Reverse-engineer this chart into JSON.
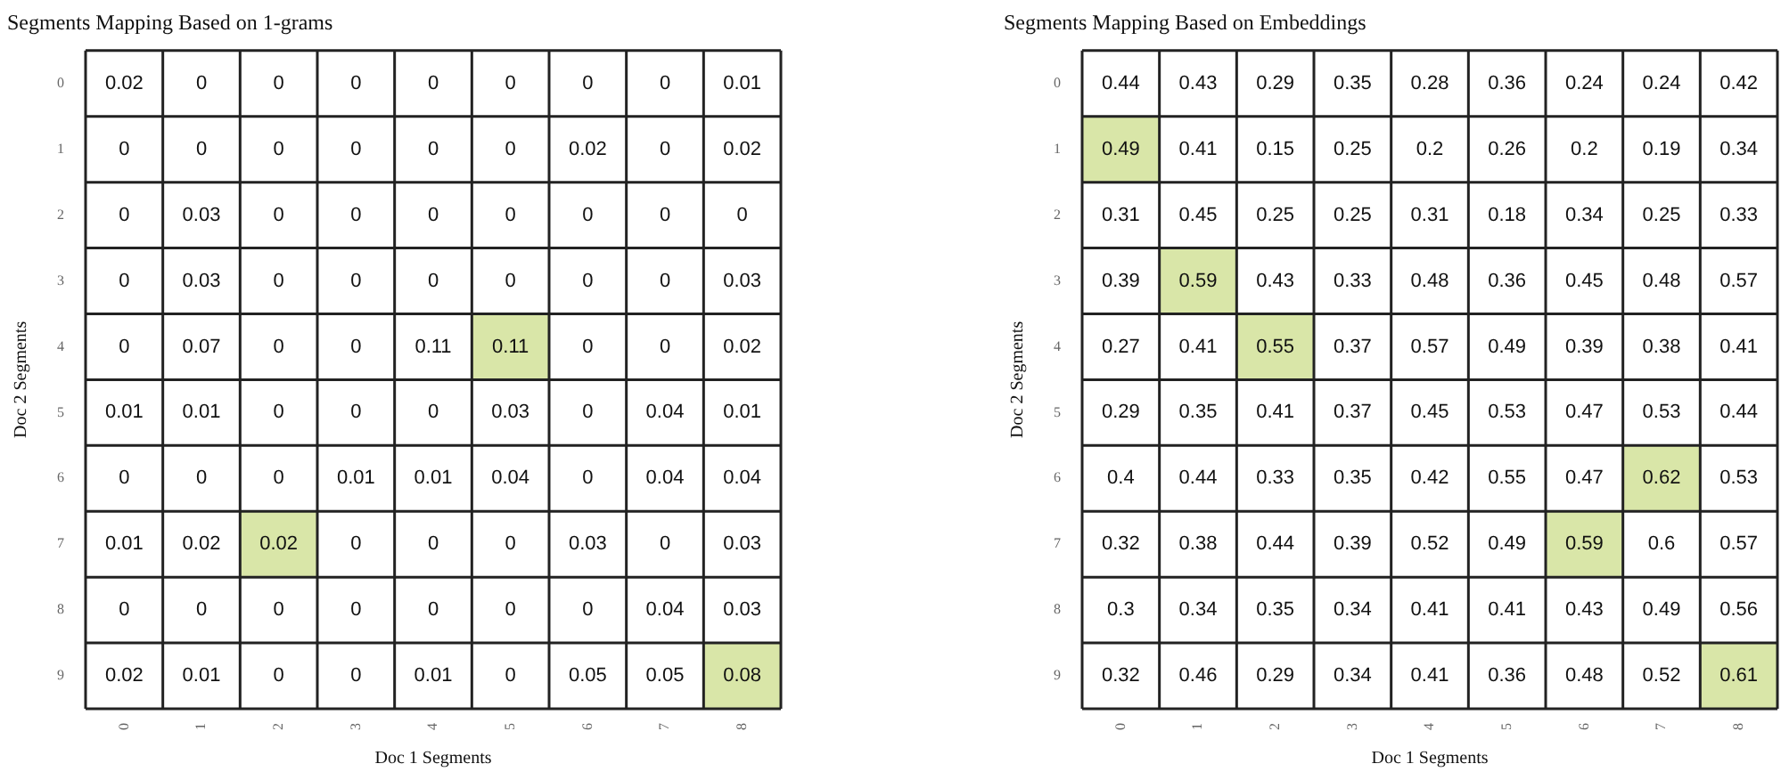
{
  "chart_data": [
    {
      "type": "heatmap",
      "title": "Segments Mapping Based on 1-grams",
      "xlabel": "Doc 1 Segments",
      "ylabel": "Doc 2 Segments",
      "categories": [
        "0",
        "1",
        "2",
        "3",
        "4",
        "5",
        "6",
        "7",
        "8"
      ],
      "y_categories": [
        "0",
        "1",
        "2",
        "3",
        "4",
        "5",
        "6",
        "7",
        "8",
        "9"
      ],
      "cells": [
        [
          0.02,
          0,
          0,
          0,
          0,
          0,
          0,
          0,
          0.01
        ],
        [
          0,
          0,
          0,
          0,
          0,
          0,
          0.02,
          0,
          0.02
        ],
        [
          0,
          0.03,
          0,
          0,
          0,
          0,
          0,
          0,
          0
        ],
        [
          0,
          0.03,
          0,
          0,
          0,
          0,
          0,
          0,
          0.03
        ],
        [
          0,
          0.07,
          0,
          0,
          0.11,
          0.11,
          0,
          0,
          0.02
        ],
        [
          0.01,
          0.01,
          0,
          0,
          0,
          0.03,
          0,
          0.04,
          0.01
        ],
        [
          0,
          0,
          0,
          0.01,
          0.01,
          0.04,
          0,
          0.04,
          0.04
        ],
        [
          0.01,
          0.02,
          0.02,
          0,
          0,
          0,
          0.03,
          0,
          0.03
        ],
        [
          0,
          0,
          0,
          0,
          0,
          0,
          0,
          0.04,
          0.03
        ],
        [
          0.02,
          0.01,
          0,
          0,
          0.01,
          0,
          0.05,
          0.05,
          0.08
        ]
      ],
      "grid": true,
      "colors": [
        [
          null,
          null,
          null,
          null,
          null,
          null,
          null,
          null,
          null
        ],
        [
          null,
          null,
          null,
          null,
          null,
          null,
          null,
          null,
          null
        ],
        [
          null,
          null,
          null,
          null,
          null,
          null,
          null,
          null,
          null
        ],
        [
          null,
          null,
          null,
          null,
          null,
          null,
          null,
          null,
          null
        ],
        [
          null,
          null,
          null,
          null,
          null,
          "#d9e6a8",
          null,
          null,
          null
        ],
        [
          null,
          null,
          null,
          null,
          null,
          null,
          null,
          null,
          null
        ],
        [
          null,
          null,
          null,
          null,
          null,
          null,
          null,
          null,
          null
        ],
        [
          null,
          null,
          "#d9e6a8",
          null,
          null,
          null,
          null,
          null,
          null
        ],
        [
          null,
          null,
          null,
          null,
          null,
          null,
          null,
          null,
          null
        ],
        [
          null,
          null,
          null,
          null,
          null,
          null,
          null,
          null,
          "#d9e6a8"
        ]
      ],
      "data_labels": true
    },
    {
      "type": "heatmap",
      "title": "Segments Mapping Based on Embeddings",
      "xlabel": "Doc 1 Segments",
      "ylabel": "Doc 2 Segments",
      "categories": [
        "0",
        "1",
        "2",
        "3",
        "4",
        "5",
        "6",
        "7",
        "8"
      ],
      "y_categories": [
        "0",
        "1",
        "2",
        "3",
        "4",
        "5",
        "6",
        "7",
        "8",
        "9"
      ],
      "cells": [
        [
          0.44,
          0.43,
          0.29,
          0.35,
          0.28,
          0.36,
          0.24,
          0.24,
          0.42
        ],
        [
          0.49,
          0.41,
          0.15,
          0.25,
          0.2,
          0.26,
          0.2,
          0.19,
          0.34
        ],
        [
          0.31,
          0.45,
          0.25,
          0.25,
          0.31,
          0.18,
          0.34,
          0.25,
          0.33
        ],
        [
          0.39,
          0.59,
          0.43,
          0.33,
          0.48,
          0.36,
          0.45,
          0.48,
          0.57
        ],
        [
          0.27,
          0.41,
          0.55,
          0.37,
          0.57,
          0.49,
          0.39,
          0.38,
          0.41
        ],
        [
          0.29,
          0.35,
          0.41,
          0.37,
          0.45,
          0.53,
          0.47,
          0.53,
          0.44
        ],
        [
          0.4,
          0.44,
          0.33,
          0.35,
          0.42,
          0.55,
          0.47,
          0.62,
          0.53
        ],
        [
          0.32,
          0.38,
          0.44,
          0.39,
          0.52,
          0.49,
          0.59,
          0.6,
          0.57
        ],
        [
          0.3,
          0.34,
          0.35,
          0.34,
          0.41,
          0.41,
          0.43,
          0.49,
          0.56
        ],
        [
          0.32,
          0.46,
          0.29,
          0.34,
          0.41,
          0.36,
          0.48,
          0.52,
          0.61
        ]
      ],
      "grid": true,
      "colors": [
        [
          null,
          null,
          null,
          null,
          null,
          null,
          null,
          null,
          null
        ],
        [
          "#d9e6a8",
          null,
          null,
          null,
          null,
          null,
          null,
          null,
          null
        ],
        [
          null,
          null,
          null,
          null,
          null,
          null,
          null,
          null,
          null
        ],
        [
          null,
          "#d9e6a8",
          null,
          null,
          null,
          null,
          null,
          null,
          null
        ],
        [
          null,
          null,
          "#d9e6a8",
          null,
          null,
          null,
          null,
          null,
          null
        ],
        [
          null,
          null,
          null,
          null,
          null,
          null,
          null,
          null,
          null
        ],
        [
          null,
          null,
          null,
          null,
          null,
          null,
          null,
          "#d9e6a8",
          null
        ],
        [
          null,
          null,
          null,
          null,
          null,
          null,
          "#d9e6a8",
          null,
          null
        ],
        [
          null,
          null,
          null,
          null,
          null,
          null,
          null,
          null,
          null
        ],
        [
          null,
          null,
          null,
          null,
          null,
          null,
          null,
          null,
          "#d9e6a8"
        ]
      ],
      "data_labels": true
    }
  ]
}
